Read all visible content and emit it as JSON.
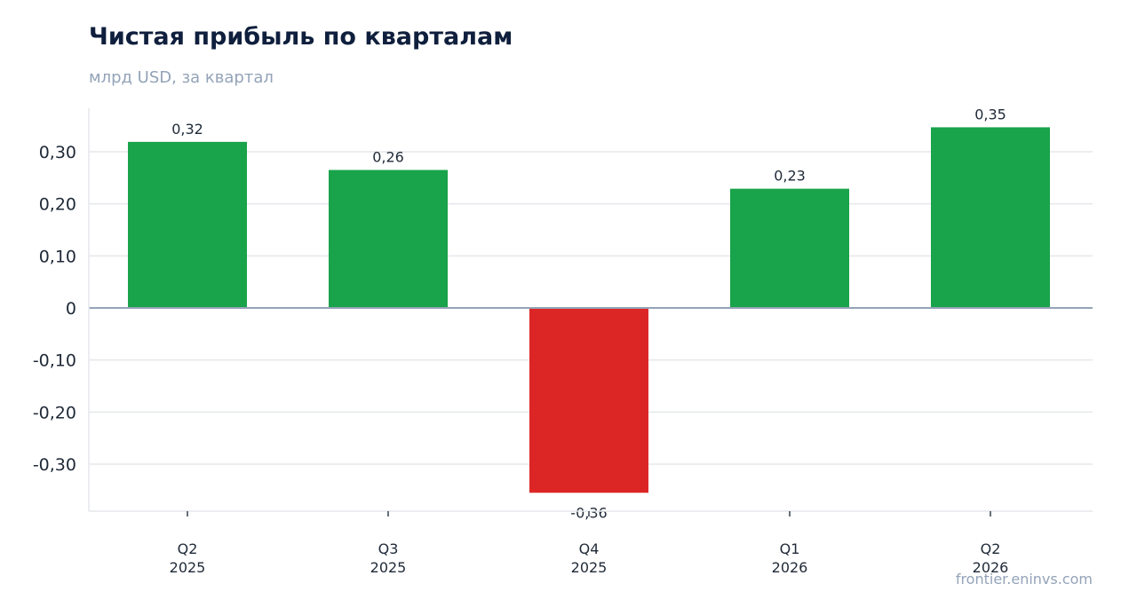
{
  "chart_data": {
    "type": "bar",
    "title": "Чистая прибыль по кварталам",
    "subtitle": "млрд USD, за квартал",
    "categories": [
      [
        "Q2",
        "2025"
      ],
      [
        "Q3",
        "2025"
      ],
      [
        "Q4",
        "2025"
      ],
      [
        "Q1",
        "2026"
      ],
      [
        "Q2",
        "2026"
      ]
    ],
    "values": [
      0.319,
      0.265,
      -0.355,
      0.229,
      0.347
    ],
    "value_labels": [
      "0,32",
      "0,26",
      "-0,36",
      "0,23",
      "0,35"
    ],
    "yticks": [
      -0.3,
      -0.2,
      -0.1,
      0,
      0.1,
      0.2,
      0.3
    ],
    "ytick_labels": [
      "-0,30",
      "-0,20",
      "-0,10",
      "0",
      "0,10",
      "0,20",
      "0,30"
    ],
    "ylim": [
      -0.39,
      0.38
    ],
    "grid": true,
    "colors": {
      "positive": "#19a34a",
      "negative": "#dc2626",
      "zero_line": "#94a3b8",
      "grid": "#e5e7eb",
      "axis": "#e5e7eb"
    }
  },
  "watermark": "frontier.eninvs.com"
}
